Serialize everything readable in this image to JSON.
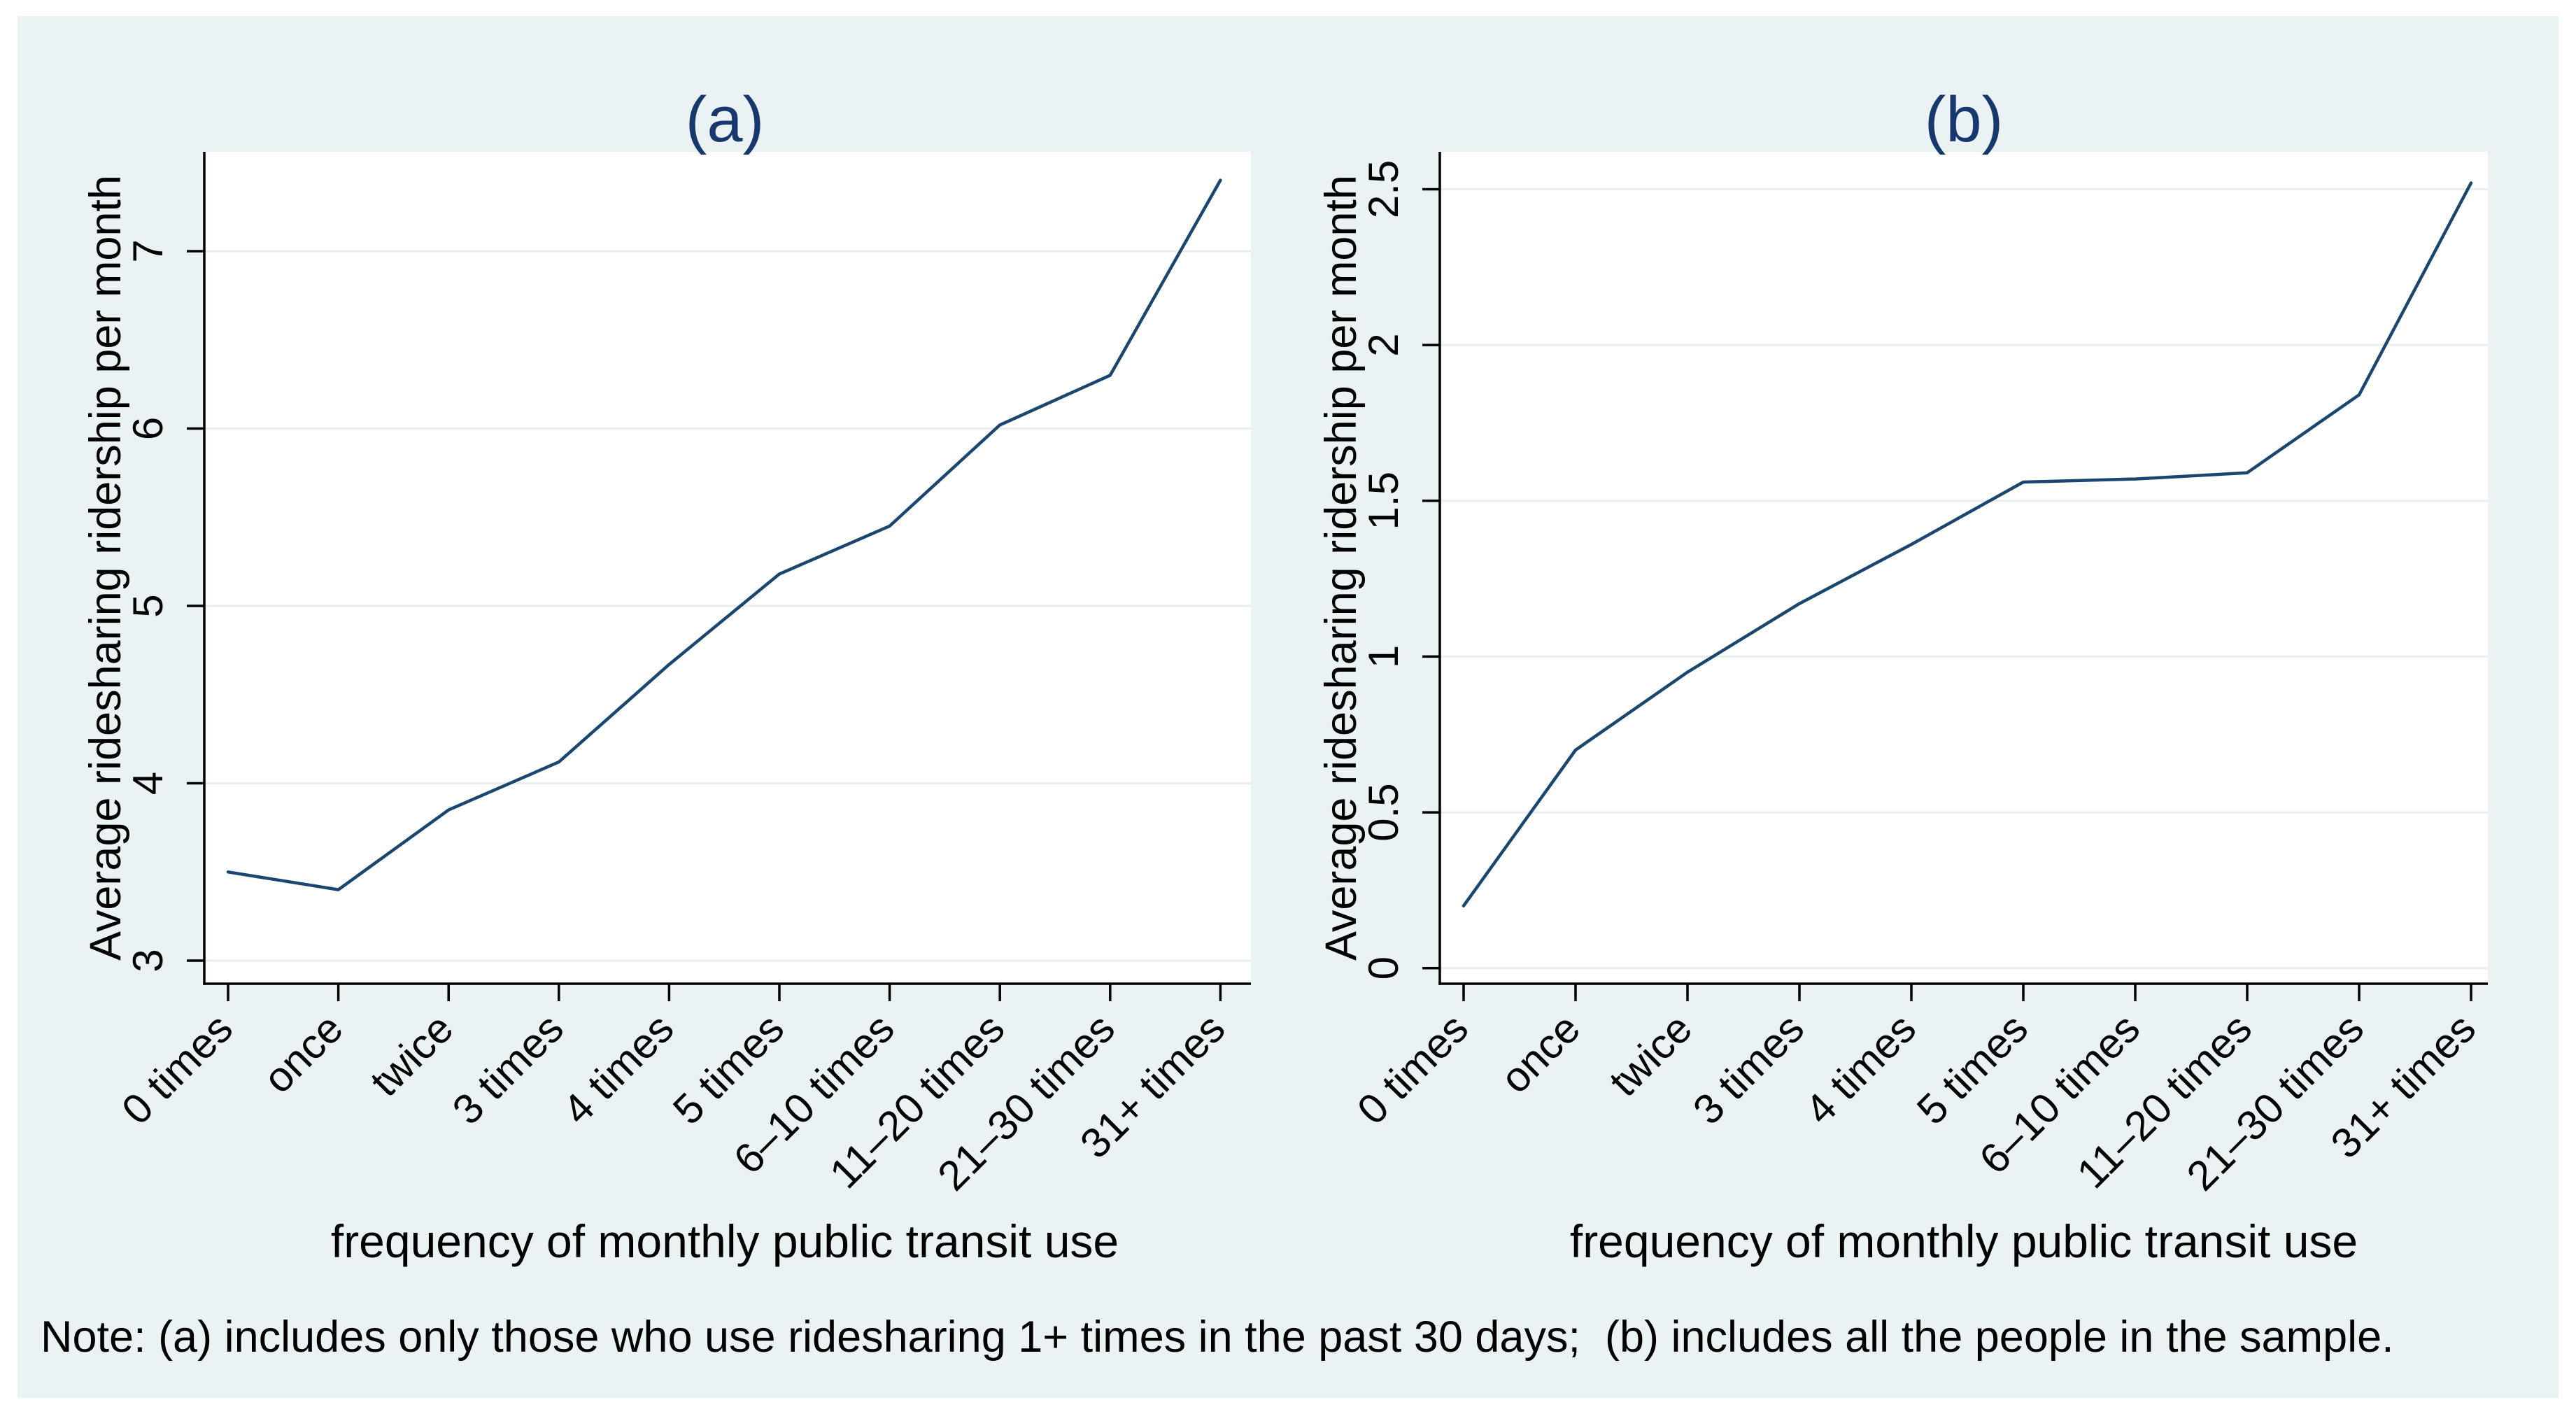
{
  "figure": {
    "background_color": "#eaf2f3",
    "plot_background": "#ffffff",
    "gridline_color": "#ebeeee",
    "axis_color": "#000000",
    "title_color": "#17386c"
  },
  "note": "Note: (a) includes only those who use ridesharing 1+ times in the past 30 days;  (b) includes all the people in the sample.",
  "chart_data": [
    {
      "type": "line",
      "title": "(a)",
      "xlabel": "frequency of monthly public transit use",
      "ylabel": "Average ridesharing ridership per month",
      "categories": [
        "0 times",
        "once",
        "twice",
        "3 times",
        "4 times",
        "5 times",
        "6–10 times",
        "11–20 times",
        "21–30 times",
        "31+ times"
      ],
      "values": [
        3.5,
        3.4,
        3.85,
        4.12,
        4.67,
        5.18,
        5.45,
        6.02,
        6.3,
        7.4
      ],
      "yticks": [
        3,
        4,
        5,
        6,
        7
      ],
      "ylim": [
        2.87,
        7.56
      ],
      "line_color": "#1a476f",
      "grid": true,
      "legend": "none",
      "x_tick_angle": 45,
      "y_tick_angle": 90
    },
    {
      "type": "line",
      "title": "(b)",
      "xlabel": "frequency of monthly public transit use",
      "ylabel": "Average ridesharing ridership per month",
      "categories": [
        "0 times",
        "once",
        "twice",
        "3 times",
        "4 times",
        "5 times",
        "6–10 times",
        "11–20 times",
        "21–30 times",
        "31+ times"
      ],
      "values": [
        0.2,
        0.7,
        0.95,
        1.17,
        1.36,
        1.56,
        1.57,
        1.59,
        1.84,
        2.52
      ],
      "yticks": [
        0,
        0.5,
        1,
        1.5,
        2,
        2.5
      ],
      "ylim": [
        -0.05,
        2.62
      ],
      "line_color": "#1a476f",
      "grid": true,
      "legend": "none",
      "x_tick_angle": 45,
      "y_tick_angle": 90
    }
  ]
}
